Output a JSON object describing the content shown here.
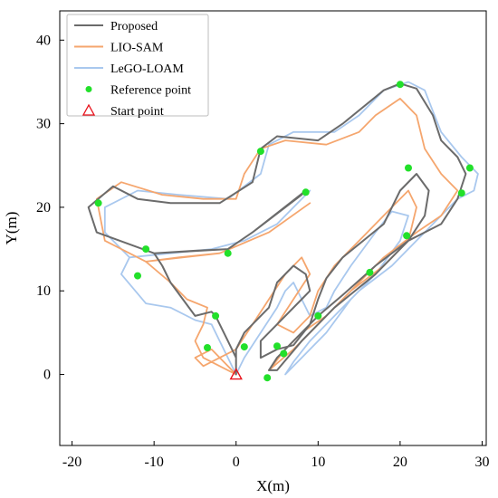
{
  "chart_data": {
    "type": "line",
    "xlabel": "X(m)",
    "ylabel": "Y(m)",
    "xlim": [
      -21.5,
      30.5
    ],
    "ylim": [
      -8.5,
      43.5
    ],
    "xticks": [
      -20,
      -10,
      0,
      10,
      20,
      30
    ],
    "yticks": [
      0,
      10,
      20,
      30,
      40
    ],
    "legend_position": "top-left",
    "series": [
      {
        "name": "Proposed",
        "color": "#6b6b6b",
        "points": [
          [
            0,
            0
          ],
          [
            0,
            2
          ],
          [
            -1,
            4
          ],
          [
            -2.5,
            7
          ],
          [
            -3,
            7.5
          ],
          [
            -5,
            7
          ],
          [
            -8,
            11
          ],
          [
            -9,
            13
          ],
          [
            -10,
            14.5
          ],
          [
            -5,
            14.8
          ],
          [
            -1,
            15
          ],
          [
            2,
            17
          ],
          [
            8.5,
            22
          ],
          [
            8,
            21.5
          ],
          [
            2,
            17
          ],
          [
            -1,
            15
          ],
          [
            -10,
            14.5
          ],
          [
            -17,
            17
          ],
          [
            -18,
            20
          ],
          [
            -15,
            22.5
          ],
          [
            -12,
            21
          ],
          [
            -8,
            20.5
          ],
          [
            -2,
            20.5
          ],
          [
            2,
            23
          ],
          [
            3,
            27
          ],
          [
            5,
            28.5
          ],
          [
            10,
            28
          ],
          [
            13,
            30
          ],
          [
            18,
            34
          ],
          [
            20,
            34.8
          ],
          [
            22,
            34.2
          ],
          [
            24,
            31
          ],
          [
            25,
            28
          ],
          [
            27,
            26
          ],
          [
            28,
            24
          ],
          [
            27,
            21
          ],
          [
            25,
            18
          ],
          [
            21,
            16
          ],
          [
            17,
            13
          ],
          [
            13,
            9.5
          ],
          [
            10,
            7
          ],
          [
            7,
            4
          ],
          [
            5,
            2
          ],
          [
            4,
            0.5
          ],
          [
            5,
            0.5
          ],
          [
            8,
            4
          ],
          [
            12,
            8
          ],
          [
            17,
            12
          ],
          [
            21,
            16
          ],
          [
            23,
            19
          ],
          [
            23.5,
            22
          ],
          [
            22,
            24
          ],
          [
            20,
            22
          ],
          [
            18,
            18
          ],
          [
            13,
            14
          ],
          [
            11,
            11.5
          ],
          [
            10,
            9
          ],
          [
            9,
            6
          ],
          [
            7,
            3.5
          ],
          [
            5,
            3
          ],
          [
            3,
            2
          ],
          [
            3,
            4
          ],
          [
            5,
            6
          ],
          [
            8,
            9
          ],
          [
            9,
            10
          ],
          [
            8.5,
            12
          ],
          [
            7,
            13
          ],
          [
            5,
            11
          ],
          [
            4,
            8
          ],
          [
            1,
            5
          ],
          [
            0,
            3
          ],
          [
            0,
            0
          ]
        ]
      },
      {
        "name": "LIO-SAM",
        "color": "#f5a66e",
        "points": [
          [
            0,
            0
          ],
          [
            -2,
            1
          ],
          [
            -4,
            2
          ],
          [
            -5,
            4
          ],
          [
            -4,
            6
          ],
          [
            -3.5,
            8
          ],
          [
            -6,
            9
          ],
          [
            -8,
            11
          ],
          [
            -11,
            13.5
          ],
          [
            -7,
            14
          ],
          [
            -2,
            14.5
          ],
          [
            4,
            17
          ],
          [
            9,
            20.5
          ],
          [
            4,
            17
          ],
          [
            -2,
            14.5
          ],
          [
            -11,
            13.5
          ],
          [
            -16,
            16
          ],
          [
            -17,
            21
          ],
          [
            -14,
            23
          ],
          [
            -9,
            21.5
          ],
          [
            -4,
            21
          ],
          [
            0,
            21
          ],
          [
            1,
            24
          ],
          [
            3,
            27
          ],
          [
            6,
            28
          ],
          [
            11,
            27.5
          ],
          [
            15,
            29
          ],
          [
            17,
            31
          ],
          [
            20,
            33
          ],
          [
            22,
            31
          ],
          [
            23,
            27
          ],
          [
            25,
            24
          ],
          [
            27,
            22
          ],
          [
            25,
            19
          ],
          [
            22,
            17
          ],
          [
            18,
            14
          ],
          [
            14,
            10
          ],
          [
            11,
            7
          ],
          [
            8,
            5
          ],
          [
            6,
            3
          ],
          [
            4,
            0.5
          ],
          [
            7,
            3
          ],
          [
            10,
            6
          ],
          [
            14,
            10
          ],
          [
            18,
            13
          ],
          [
            21,
            16
          ],
          [
            22,
            20
          ],
          [
            21,
            22
          ],
          [
            19,
            20
          ],
          [
            16,
            17
          ],
          [
            12,
            13
          ],
          [
            10,
            10
          ],
          [
            9,
            7
          ],
          [
            7,
            5
          ],
          [
            5,
            6
          ],
          [
            7,
            9
          ],
          [
            9,
            12
          ],
          [
            8,
            14
          ],
          [
            6,
            12
          ],
          [
            4,
            9
          ],
          [
            2,
            6
          ],
          [
            0,
            3
          ],
          [
            -2,
            2
          ],
          [
            -4,
            1
          ],
          [
            -5,
            2
          ],
          [
            -3,
            3
          ],
          [
            0,
            0
          ]
        ]
      },
      {
        "name": "LeGO-LOAM",
        "color": "#a9c8ee",
        "points": [
          [
            0,
            0
          ],
          [
            -1,
            2
          ],
          [
            -2,
            4
          ],
          [
            -3,
            6
          ],
          [
            -5,
            6.5
          ],
          [
            -8,
            8
          ],
          [
            -11,
            8.5
          ],
          [
            -14,
            12
          ],
          [
            -13,
            14
          ],
          [
            -8,
            14.5
          ],
          [
            -3,
            15
          ],
          [
            1,
            16
          ],
          [
            5,
            18
          ],
          [
            9,
            22
          ],
          [
            5,
            18
          ],
          [
            1,
            16
          ],
          [
            -3,
            15
          ],
          [
            -13,
            14
          ],
          [
            -16,
            17
          ],
          [
            -16,
            20
          ],
          [
            -12,
            22
          ],
          [
            -7,
            21.5
          ],
          [
            -1,
            21
          ],
          [
            3,
            24
          ],
          [
            4,
            27.5
          ],
          [
            7,
            29
          ],
          [
            12,
            29
          ],
          [
            15,
            31
          ],
          [
            18,
            34
          ],
          [
            21,
            35
          ],
          [
            23,
            34
          ],
          [
            24,
            31.5
          ],
          [
            25,
            29
          ],
          [
            27.5,
            26
          ],
          [
            29.5,
            24
          ],
          [
            29,
            22
          ],
          [
            27,
            21
          ],
          [
            24,
            18
          ],
          [
            22,
            16
          ],
          [
            19,
            13
          ],
          [
            15,
            10
          ],
          [
            12,
            7
          ],
          [
            9,
            4
          ],
          [
            7,
            1.5
          ],
          [
            6,
            0
          ],
          [
            8,
            2
          ],
          [
            11,
            5
          ],
          [
            14,
            9
          ],
          [
            17,
            12
          ],
          [
            20,
            16
          ],
          [
            21,
            19
          ],
          [
            19,
            19.5
          ],
          [
            17,
            17
          ],
          [
            14,
            13
          ],
          [
            12,
            10
          ],
          [
            11,
            8
          ],
          [
            9,
            7
          ],
          [
            8,
            9
          ],
          [
            7,
            11
          ],
          [
            6,
            10
          ],
          [
            5,
            8
          ],
          [
            3,
            5
          ],
          [
            1,
            2
          ],
          [
            0,
            0
          ]
        ]
      }
    ],
    "reference_points": {
      "name": "Reference point",
      "color": "#22e02a",
      "points": [
        [
          -16.8,
          20.5
        ],
        [
          -11,
          15
        ],
        [
          -12,
          11.8
        ],
        [
          -1,
          14.5
        ],
        [
          3,
          26.7
        ],
        [
          8.5,
          21.8
        ],
        [
          20,
          34.7
        ],
        [
          21,
          24.7
        ],
        [
          28.5,
          24.7
        ],
        [
          27.5,
          21.7
        ],
        [
          20.8,
          16.6
        ],
        [
          16.3,
          12.2
        ],
        [
          10,
          7
        ],
        [
          -2.5,
          7
        ],
        [
          -3.5,
          3.2
        ],
        [
          1,
          3.3
        ],
        [
          5,
          3.4
        ],
        [
          5.8,
          2.5
        ],
        [
          3.8,
          -0.4
        ]
      ]
    },
    "start_point": {
      "name": "Start point",
      "color": "#e8101a",
      "point": [
        0,
        0
      ]
    }
  }
}
